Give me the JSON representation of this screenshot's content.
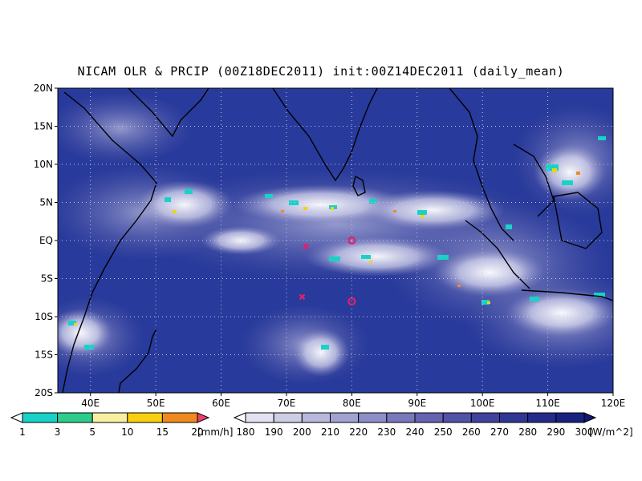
{
  "title": "NICAM OLR & PRCIP (00Z18DEC2011) init:00Z14DEC2011 (daily_mean)",
  "map": {
    "lat_ticks": [
      "20N",
      "15N",
      "10N",
      "5N",
      "EQ",
      "5S",
      "10S",
      "15S",
      "20S"
    ],
    "lon_ticks": [
      "40E",
      "50E",
      "60E",
      "70E",
      "80E",
      "90E",
      "100E",
      "110E",
      "120E"
    ],
    "lon_range": [
      35,
      120
    ],
    "lat_range": [
      -20,
      20
    ],
    "ocean_color": "#283a9b",
    "markers": [
      {
        "type": "x",
        "lon": 73,
        "lat": -0.8,
        "color": "#e0206e"
      },
      {
        "type": "o",
        "lon": 80,
        "lat": 0.0,
        "color": "#e0206e"
      },
      {
        "type": "x",
        "lon": 72.4,
        "lat": -7.4,
        "color": "#e0206e"
      },
      {
        "type": "o",
        "lon": 80,
        "lat": -8.0,
        "color": "#e0206e"
      }
    ]
  },
  "precip_colorbar": {
    "labels": [
      "1",
      "3",
      "5",
      "10",
      "15",
      "20"
    ],
    "unit": "[mm/h]",
    "colors": [
      "#ffffff",
      "#18d2c8",
      "#2ecc8c",
      "#f8f0a0",
      "#f8d010",
      "#f08a20",
      "#e8406a"
    ]
  },
  "olr_colorbar": {
    "labels": [
      "180",
      "190",
      "200",
      "210",
      "220",
      "230",
      "240",
      "250",
      "260",
      "270",
      "280",
      "290",
      "300"
    ],
    "unit": "[W/m^2]",
    "colors": [
      "#ffffff",
      "#e2e2f0",
      "#cdcde6",
      "#b8b8dc",
      "#a2a2d2",
      "#8e8ec8",
      "#7878bc",
      "#6464b2",
      "#5252a8",
      "#40429e",
      "#303694",
      "#242c8a",
      "#1a2280",
      "#101870"
    ]
  }
}
